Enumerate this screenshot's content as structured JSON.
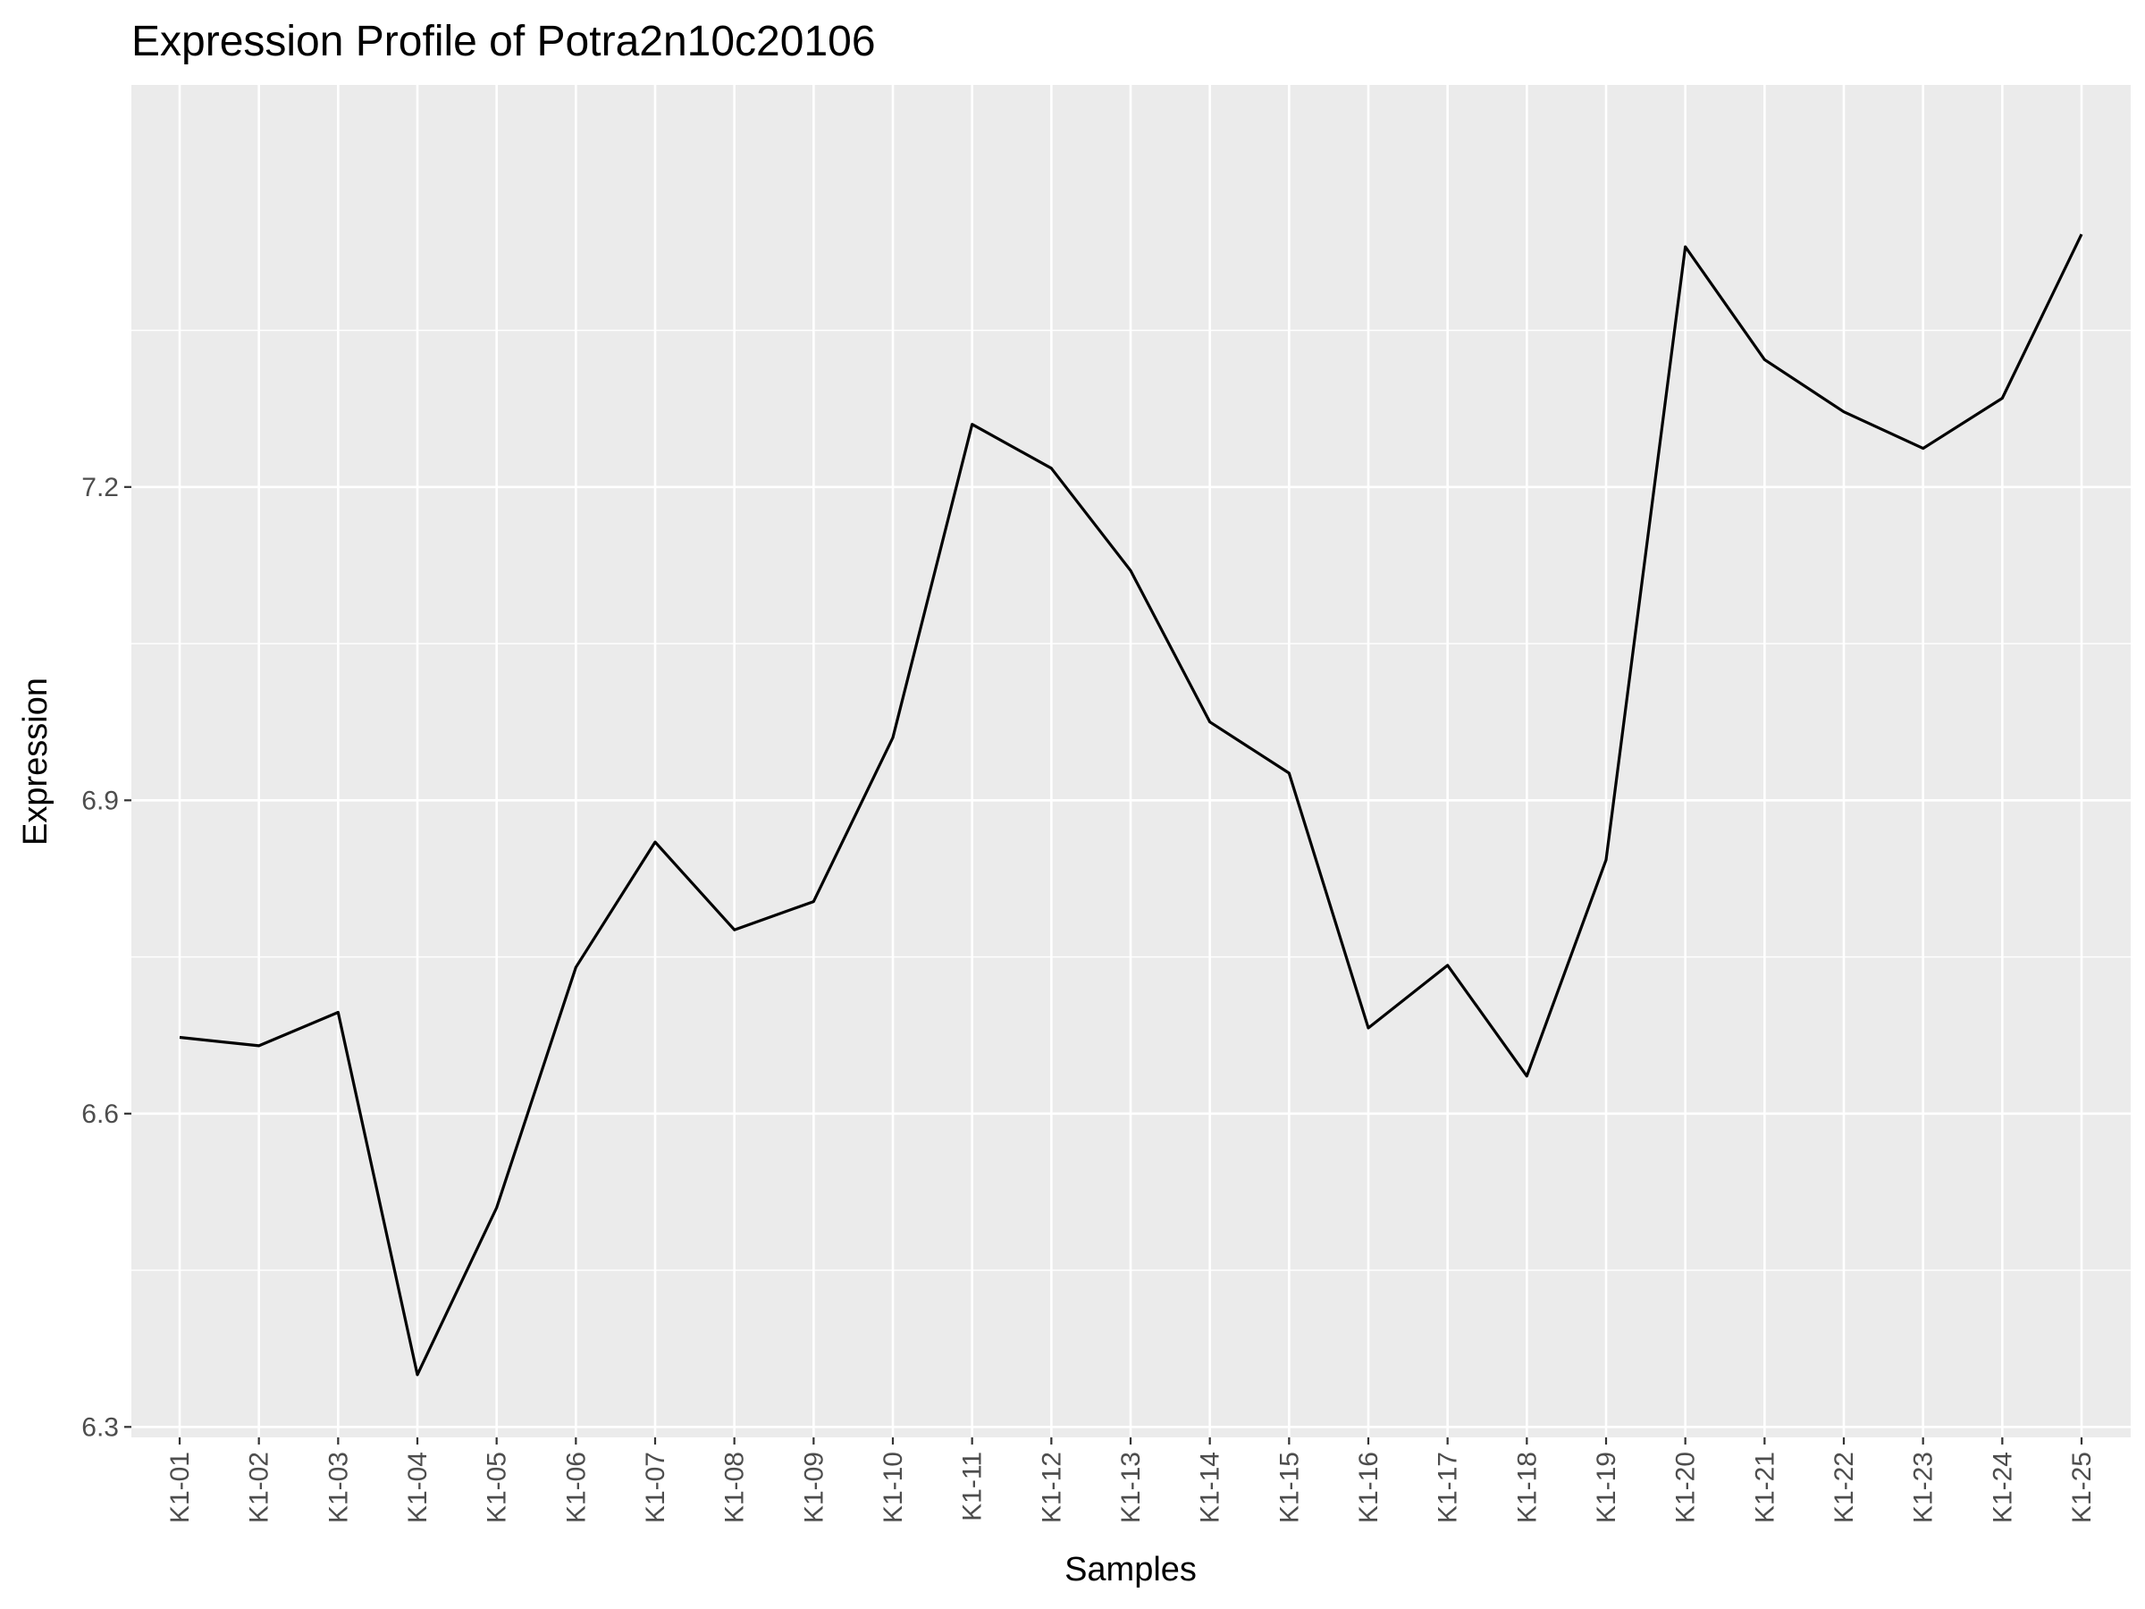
{
  "chart_data": {
    "type": "line",
    "title": "Expression Profile of Potra2n10c20106",
    "xlabel": "Samples",
    "ylabel": "Expression",
    "categories": [
      "K1-01",
      "K1-02",
      "K1-03",
      "K1-04",
      "K1-05",
      "K1-06",
      "K1-07",
      "K1-08",
      "K1-09",
      "K1-10",
      "K1-11",
      "K1-12",
      "K1-13",
      "K1-14",
      "K1-15",
      "K1-16",
      "K1-17",
      "K1-18",
      "K1-19",
      "K1-20",
      "K1-21",
      "K1-22",
      "K1-23",
      "K1-24",
      "K1-25"
    ],
    "values": [
      6.673,
      6.665,
      6.697,
      6.35,
      6.51,
      6.74,
      6.86,
      6.776,
      6.803,
      6.96,
      7.26,
      7.218,
      7.12,
      6.975,
      6.926,
      6.682,
      6.742,
      6.636,
      6.843,
      7.43,
      7.322,
      7.272,
      7.237,
      7.285,
      7.442
    ],
    "ylim": [
      6.29,
      7.585
    ],
    "yticks": [
      "6.3",
      "6.6",
      "6.9",
      "7.2"
    ],
    "grid": true,
    "colors": {
      "panel": "#EBEBEB",
      "grid": "#FFFFFF",
      "line": "#000000",
      "tick_label": "#4D4D4D",
      "tick_mark": "#333333"
    }
  }
}
